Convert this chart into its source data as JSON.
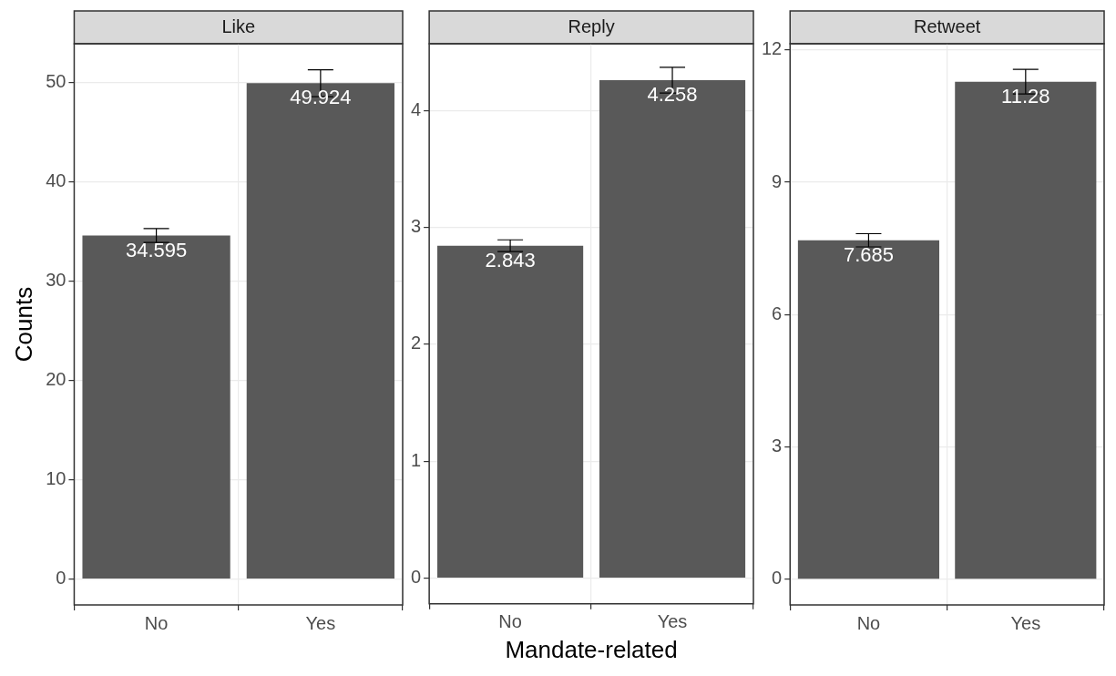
{
  "chart_data": [
    {
      "type": "bar",
      "title": "Like",
      "ylabel": "Counts",
      "categories": [
        "No",
        "Yes"
      ],
      "values": [
        34.595,
        49.924
      ],
      "errors": [
        0.7,
        1.35
      ],
      "color": "#595959",
      "ylim": [
        -2.6,
        53.9
      ],
      "yticks": [
        0,
        10,
        20,
        30,
        40,
        50
      ],
      "grid": true,
      "data_labels": true
    },
    {
      "type": "bar",
      "title": "Reply",
      "xlabel": "Mandate-related",
      "categories": [
        "No",
        "Yes"
      ],
      "values": [
        2.843,
        4.258
      ],
      "errors": [
        0.05,
        0.11
      ],
      "color": "#595959",
      "ylim": [
        -0.22,
        4.57
      ],
      "yticks": [
        0,
        1,
        2,
        3,
        4
      ],
      "grid": true,
      "data_labels": true
    },
    {
      "type": "bar",
      "title": "Retweet",
      "categories": [
        "No",
        "Yes"
      ],
      "values": [
        7.685,
        11.28
      ],
      "errors": [
        0.15,
        0.28
      ],
      "color": "#595959",
      "ylim": [
        -0.58,
        12.14
      ],
      "yticks": [
        0,
        3,
        6,
        9,
        12
      ],
      "grid": true,
      "data_labels": true
    }
  ]
}
